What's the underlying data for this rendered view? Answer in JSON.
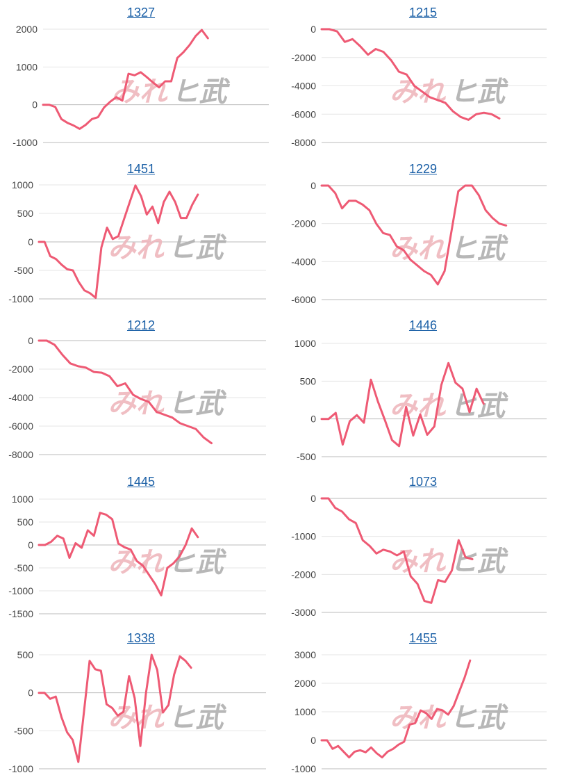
{
  "colors": {
    "line": "#ee5a74",
    "grid": "#e6e6e6",
    "axis": "#bbbbbb",
    "title": "#1a5fa6",
    "watermark_left": "#efb7bd",
    "watermark_right": "#b0b0b0"
  },
  "watermark": {
    "left": "みれ",
    "right": "ヒ武"
  },
  "chart_data": [
    {
      "id": "1327",
      "title": "1327",
      "type": "line",
      "ylim": [
        -1000,
        2000
      ],
      "yticks": [
        2000,
        1000,
        0,
        -1000
      ],
      "values": [
        0,
        0,
        -60,
        -380,
        -480,
        -550,
        -640,
        -530,
        -380,
        -330,
        -70,
        80,
        200,
        110,
        820,
        780,
        860,
        730,
        590,
        460,
        620,
        620,
        1240,
        1390,
        1580,
        1820,
        1980,
        1760
      ]
    },
    {
      "id": "1215",
      "title": "1215",
      "type": "line",
      "ylim": [
        -8000,
        0
      ],
      "yticks": [
        0,
        -2000,
        -4000,
        -6000,
        -8000
      ],
      "values": [
        0,
        0,
        -150,
        -900,
        -700,
        -1200,
        -1800,
        -1400,
        -1600,
        -2200,
        -3000,
        -3200,
        -4000,
        -4400,
        -4800,
        -5000,
        -5200,
        -5800,
        -6200,
        -6400,
        -6000,
        -5900,
        -6000,
        -6300
      ]
    },
    {
      "id": "1451",
      "title": "1451",
      "type": "line",
      "ylim": [
        -1000,
        1000
      ],
      "yticks": [
        1000,
        500,
        0,
        -500,
        -1000
      ],
      "values": [
        0,
        0,
        -250,
        -300,
        -400,
        -480,
        -500,
        -700,
        -850,
        -900,
        -980,
        -100,
        250,
        50,
        100,
        400,
        700,
        990,
        800,
        480,
        620,
        330,
        700,
        880,
        700,
        420,
        420,
        650,
        830
      ]
    },
    {
      "id": "1229",
      "title": "1229",
      "type": "line",
      "ylim": [
        -6000,
        0
      ],
      "yticks": [
        0,
        -2000,
        -4000,
        -6000
      ],
      "values": [
        0,
        0,
        -400,
        -1200,
        -800,
        -800,
        -1000,
        -1300,
        -2000,
        -2500,
        -2600,
        -3200,
        -3400,
        -3900,
        -4200,
        -4500,
        -4700,
        -5200,
        -4500,
        -2400,
        -300,
        0,
        0,
        -500,
        -1300,
        -1700,
        -2000,
        -2100
      ]
    },
    {
      "id": "1212",
      "title": "1212",
      "type": "line",
      "ylim": [
        -8000,
        0
      ],
      "yticks": [
        0,
        -2000,
        -4000,
        -6000,
        -8000
      ],
      "values": [
        0,
        0,
        -300,
        -1000,
        -1600,
        -1800,
        -1900,
        -2200,
        -2250,
        -2500,
        -3200,
        -3000,
        -3800,
        -4100,
        -4300,
        -5000,
        -5200,
        -5400,
        -5800,
        -6000,
        -6200,
        -6800,
        -7200
      ]
    },
    {
      "id": "1446",
      "title": "1446",
      "type": "line",
      "ylim": [
        -500,
        1000
      ],
      "yticks": [
        1000,
        500,
        0,
        -500
      ],
      "values": [
        0,
        0,
        80,
        -340,
        -30,
        50,
        -50,
        520,
        230,
        -20,
        -280,
        -360,
        160,
        -220,
        60,
        -210,
        -100,
        450,
        740,
        480,
        400,
        90,
        400,
        200
      ]
    },
    {
      "id": "1445",
      "title": "1445",
      "type": "line",
      "ylim": [
        -1500,
        1000
      ],
      "yticks": [
        1000,
        500,
        0,
        -500,
        -1000,
        -1500
      ],
      "values": [
        0,
        0,
        70,
        200,
        140,
        -280,
        40,
        -60,
        320,
        200,
        700,
        660,
        560,
        30,
        -50,
        -100,
        -350,
        -450,
        -650,
        -850,
        -1100,
        -500,
        -400,
        -250,
        0,
        360,
        170
      ]
    },
    {
      "id": "1073",
      "title": "1073",
      "type": "line",
      "ylim": [
        -3000,
        0
      ],
      "yticks": [
        0,
        -1000,
        -2000,
        -3000
      ],
      "values": [
        0,
        0,
        -250,
        -350,
        -550,
        -650,
        -1100,
        -1250,
        -1450,
        -1350,
        -1400,
        -1500,
        -1400,
        -2050,
        -2250,
        -2700,
        -2750,
        -2150,
        -2200,
        -1900,
        -1100,
        -1550,
        -1600
      ]
    },
    {
      "id": "1338",
      "title": "1338",
      "type": "line",
      "ylim": [
        -1000,
        500
      ],
      "yticks": [
        500,
        0,
        -500,
        -1000
      ],
      "values": [
        0,
        0,
        -80,
        -50,
        -320,
        -520,
        -620,
        -910,
        -250,
        420,
        310,
        290,
        -150,
        -200,
        -300,
        -250,
        220,
        -70,
        -700,
        0,
        500,
        300,
        -260,
        -160,
        240,
        480,
        420,
        330
      ]
    },
    {
      "id": "1455",
      "title": "1455",
      "type": "line",
      "ylim": [
        -1000,
        3000
      ],
      "yticks": [
        3000,
        2000,
        1000,
        0,
        -1000
      ],
      "values": [
        0,
        0,
        -300,
        -200,
        -400,
        -600,
        -400,
        -350,
        -420,
        -250,
        -450,
        -600,
        -400,
        -300,
        -150,
        -50,
        550,
        600,
        1050,
        950,
        750,
        1100,
        1050,
        900,
        1200,
        1700,
        2200,
        2800
      ]
    }
  ]
}
